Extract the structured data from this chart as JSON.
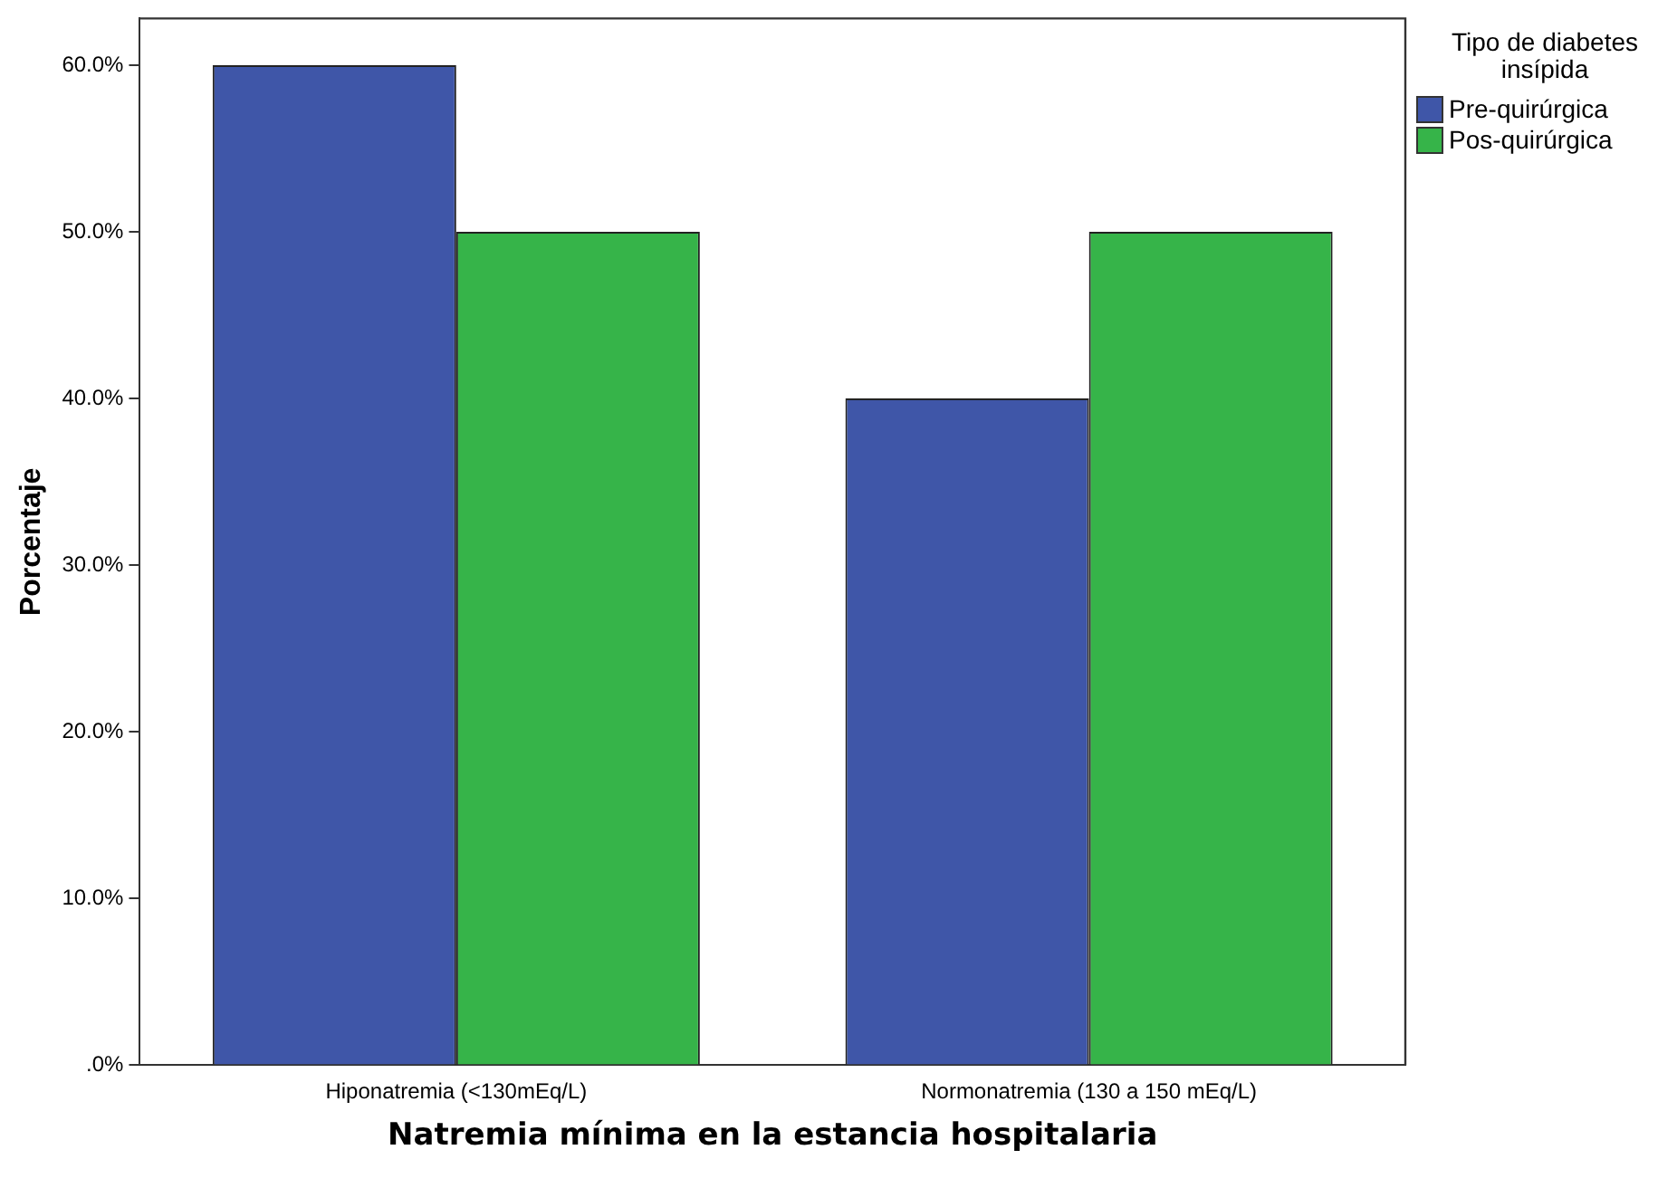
{
  "chart_data": {
    "type": "bar",
    "xlabel": "Natremia mínima en la estancia hospitalaria",
    "ylabel": "Porcentaje",
    "legend_title": "Tipo de diabetes insípida",
    "legend": "right",
    "categories": [
      "Hiponatremia (<130mEq/L)",
      "Normonatremia (130 a 150 mEq/L)"
    ],
    "series": [
      {
        "name": "Pre-quirúrgica",
        "color": "#3f56a8",
        "values": [
          60,
          40
        ]
      },
      {
        "name": "Pos-quirúrgica",
        "color": "#36b449",
        "values": [
          50,
          50
        ]
      }
    ],
    "ylim": [
      0,
      62.8
    ],
    "yticks": [
      {
        "value": 0,
        "label": ".0%"
      },
      {
        "value": 10,
        "label": "10.0%"
      },
      {
        "value": 20,
        "label": "20.0%"
      },
      {
        "value": 30,
        "label": "30.0%"
      },
      {
        "value": 40,
        "label": "40.0%"
      },
      {
        "value": 50,
        "label": "50.0%"
      },
      {
        "value": 60,
        "label": "60.0%"
      }
    ],
    "grid": false
  }
}
